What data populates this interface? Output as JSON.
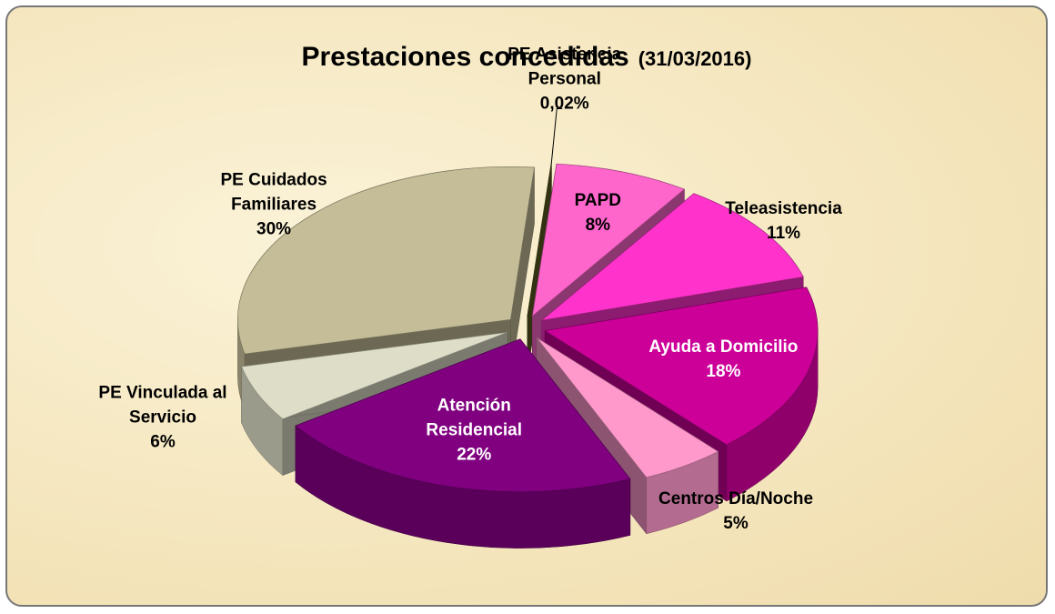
{
  "chart_data": {
    "type": "pie3d",
    "title": "Prestaciones concedidas",
    "subtitle": "(31/03/2016)",
    "categories": [
      "PE Asistencia Personal",
      "PAPD",
      "Teleasistencia",
      "Ayuda a Domicilio",
      "Centros Día/Noche",
      "Atención Residencial",
      "PE Vinculada al Servicio",
      "PE Cuidados Familiares"
    ],
    "values": [
      0.02,
      8,
      11,
      18,
      5,
      22,
      6,
      30
    ],
    "value_labels": [
      "0,02%",
      "8%",
      "11%",
      "18%",
      "5%",
      "22%",
      "6%",
      "30%"
    ],
    "colors": [
      "#5a5a20",
      "#ff66cc",
      "#ff33cc",
      "#cc0099",
      "#ff99cc",
      "#800080",
      "#deddc8",
      "#c4bd97"
    ]
  }
}
